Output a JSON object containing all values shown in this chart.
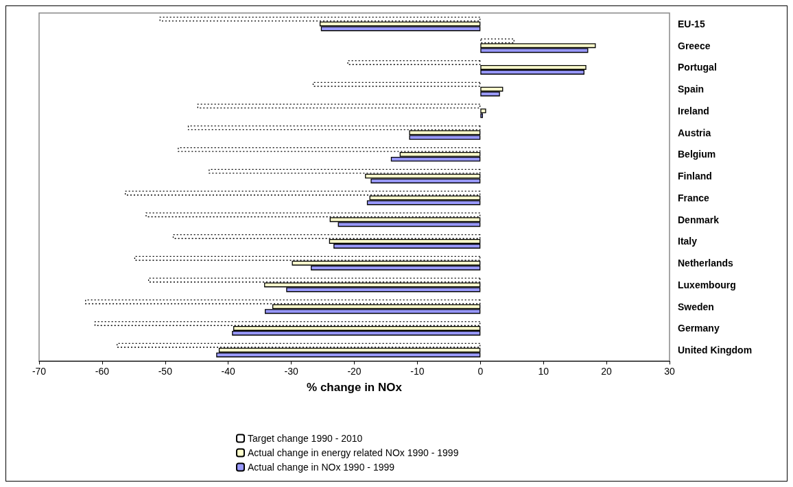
{
  "chart_data": {
    "type": "bar",
    "orientation": "horizontal",
    "xlabel": "% change in NOx",
    "categories": [
      "EU-15",
      "Greece",
      "Portugal",
      "Spain",
      "Ireland",
      "Austria",
      "Belgium",
      "Finland",
      "France",
      "Denmark",
      "Italy",
      "Netherlands",
      "Luxembourg",
      "Sweden",
      "Germany",
      "United Kingdom"
    ],
    "series": [
      {
        "name": "Target change 1990 - 2010",
        "color": "#ffffff",
        "line_style": "dotted",
        "values": [
          -50.9,
          5.4,
          -21.1,
          -26.6,
          -44.9,
          -46.4,
          -48.0,
          -43.1,
          -56.4,
          -53.1,
          -48.8,
          -54.9,
          -52.7,
          -62.7,
          -61.2,
          -57.7
        ]
      },
      {
        "name": "Actual change in energy related NOx 1990 - 1999",
        "color": "#ffffcc",
        "line_style": "solid",
        "values": [
          -25.5,
          18.3,
          16.8,
          3.6,
          0.9,
          -11.3,
          -12.8,
          -18.3,
          -17.6,
          -23.9,
          -24.0,
          -29.9,
          -34.3,
          -33.0,
          -39.2,
          -41.5
        ]
      },
      {
        "name": "Actual change in NOx 1990 - 1999",
        "color": "#9999ff",
        "line_style": "solid",
        "values": [
          -25.3,
          17.1,
          16.5,
          3.1,
          0.4,
          -11.3,
          -14.2,
          -17.4,
          -18.0,
          -22.6,
          -23.3,
          -26.9,
          -30.8,
          -34.2,
          -39.4,
          -41.9
        ]
      }
    ],
    "xlim": [
      -70,
      30
    ],
    "xticks": [
      -70,
      -60,
      -50,
      -40,
      -30,
      -20,
      -10,
      0,
      10,
      20,
      30
    ],
    "grid": false,
    "legend": "bottom"
  }
}
